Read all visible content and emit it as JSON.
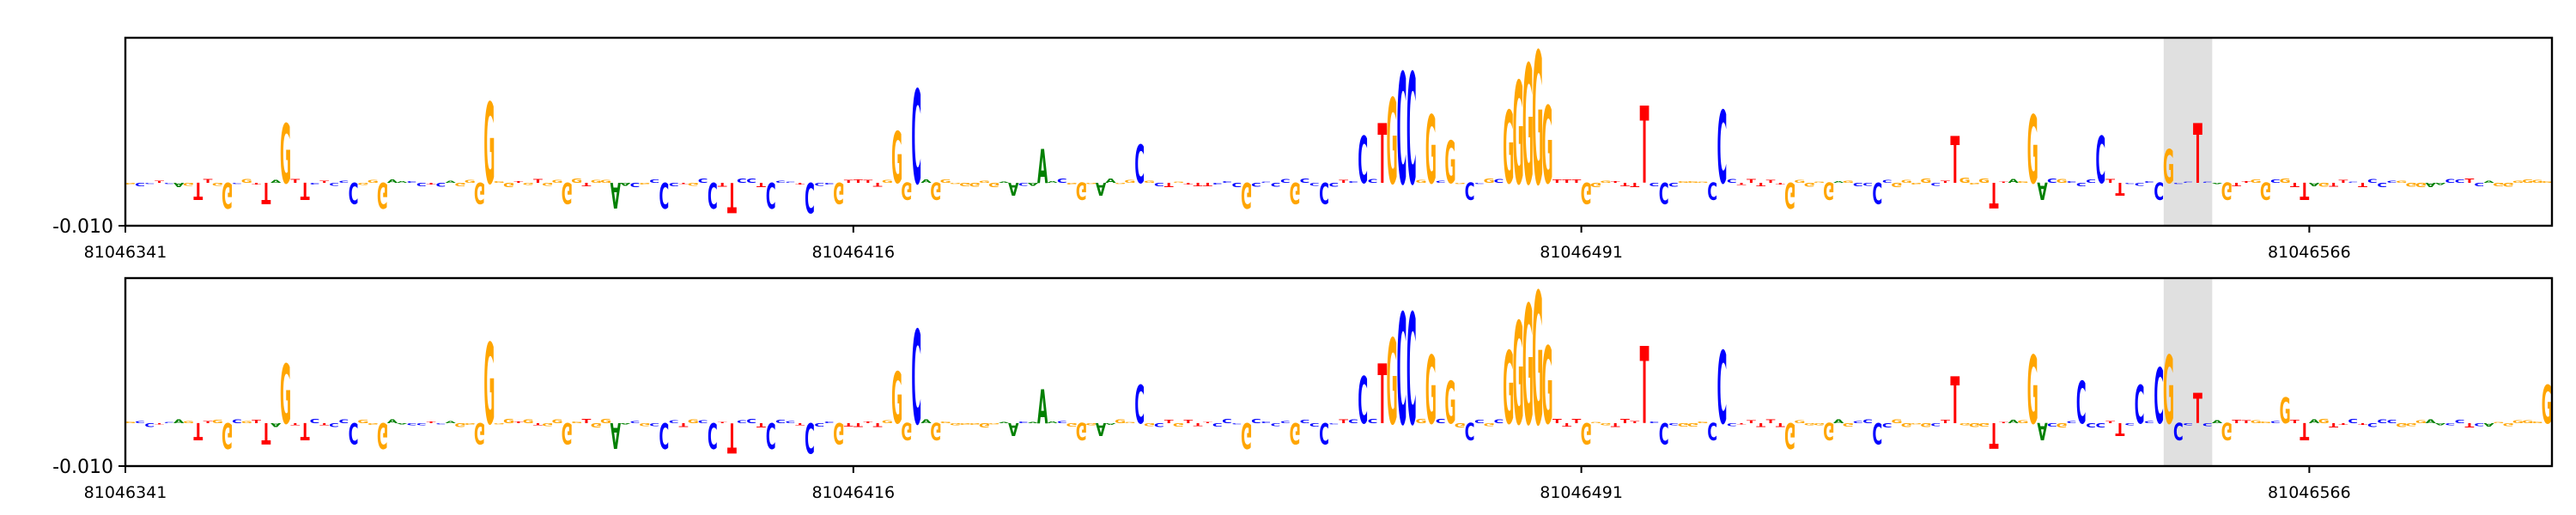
{
  "colors": {
    "A": "#008000",
    "C": "#0000ff",
    "G": "#ffa500",
    "T": "#ff0000",
    "highlight": "#e0e0e0",
    "frame": "#000000"
  },
  "chart_data": [
    {
      "type": "sequence-logo",
      "title": "",
      "xlabel": "",
      "ylabel": "",
      "ytick_label": "-0.010",
      "xlim": [
        81046341,
        81046591
      ],
      "xticks": [
        81046341,
        81046416,
        81046491,
        81046566
      ],
      "xtick_labels": [
        "81046341",
        "81046416",
        "81046491",
        "81046566"
      ],
      "ylim": [
        -0.01,
        0.034
      ],
      "highlight_range": [
        81046551,
        81046556
      ],
      "bases": "GCCTCAGTTGGCGTTAGTTCTCCCGGGAACCTCAGGGGGGTGTGGGGTGGAACGCCCTGCCTTCCTCCCTCCCGTTTTGGGCAGGGGGGGAACAAACGGGAAGGCGCTGTTTCCCGCCCCGCCCCTCCCTGCCGGCGGCCGCGGGGGTTTGGGTTTTCCCGGGCCCTTTTTGGGGGAGCCCCGGGGCTTGGGTTAGGACGCCCCTTCCCC",
      "peaks": [
        [
          16,
          0.014
        ],
        [
          37,
          0.019
        ],
        [
          79,
          0.012
        ],
        [
          81,
          0.022
        ],
        [
          94,
          0.008
        ],
        [
          104,
          0.009
        ],
        [
          127,
          0.011
        ],
        [
          129,
          0.014
        ],
        [
          130,
          0.02
        ],
        [
          131,
          0.026
        ],
        [
          132,
          0.026
        ],
        [
          134,
          0.016
        ],
        [
          136,
          0.01
        ],
        [
          142,
          0.017
        ],
        [
          143,
          0.024
        ],
        [
          144,
          0.028
        ],
        [
          145,
          0.031
        ],
        [
          146,
          0.018
        ],
        [
          156,
          0.018
        ],
        [
          164,
          0.017
        ],
        [
          188,
          0.011
        ],
        [
          196,
          0.016
        ],
        [
          203,
          0.011
        ],
        [
          210,
          0.008
        ],
        [
          213,
          0.014
        ]
      ],
      "dips": [
        [
          7,
          -0.004
        ],
        [
          10,
          -0.006
        ],
        [
          14,
          -0.005
        ],
        [
          18,
          -0.004
        ],
        [
          23,
          -0.005
        ],
        [
          26,
          -0.006
        ],
        [
          36,
          -0.005
        ],
        [
          45,
          -0.005
        ],
        [
          50,
          -0.006
        ],
        [
          55,
          -0.006
        ],
        [
          60,
          -0.006
        ],
        [
          62,
          -0.007
        ],
        [
          66,
          -0.006
        ],
        [
          70,
          -0.007
        ],
        [
          73,
          -0.005
        ],
        [
          80,
          -0.004
        ],
        [
          83,
          -0.004
        ],
        [
          91,
          -0.003
        ],
        [
          98,
          -0.004
        ],
        [
          100,
          -0.003
        ],
        [
          115,
          -0.006
        ],
        [
          120,
          -0.005
        ],
        [
          123,
          -0.005
        ],
        [
          138,
          -0.004
        ],
        [
          146,
          -0.003
        ],
        [
          150,
          -0.005
        ],
        [
          158,
          -0.005
        ],
        [
          163,
          -0.004
        ],
        [
          171,
          -0.006
        ],
        [
          175,
          -0.004
        ],
        [
          180,
          -0.005
        ],
        [
          192,
          -0.006
        ],
        [
          197,
          -0.004
        ],
        [
          205,
          -0.003
        ],
        [
          209,
          -0.004
        ],
        [
          216,
          -0.004
        ],
        [
          220,
          -0.004
        ],
        [
          224,
          -0.004
        ]
      ],
      "noise_seed": 7
    },
    {
      "type": "sequence-logo",
      "title": "",
      "xlabel": "",
      "ylabel": "",
      "ytick_label": "-0.010",
      "xlim": [
        81046341,
        81046591
      ],
      "xticks": [
        81046341,
        81046416,
        81046491,
        81046566
      ],
      "xtick_labels": [
        "81046341",
        "81046416",
        "81046491",
        "81046566"
      ],
      "ylim": [
        -0.01,
        0.034
      ],
      "highlight_range": [
        81046551,
        81046556
      ],
      "bases": "GCCTCAGTTGGCGTTAGTTCTCCCGGGAACCTCAGGGGGGTGTGGGGTGGAACGCCCTGCCTTCCTCCCTCCCGTTTTGGGCAGGGGGGGAACAAACGGGAAGGCGCTGTTTCCCGCCCCGCCCCTCCCTGCCGGCGGCCGCGGGGGTTTGGGTTTTCCCGGGCCCTTTTTGGGGGAGCCCCGGGGCTTGGGTTAGGACGCCCCTTCCCC",
      "peaks": [
        [
          16,
          0.014
        ],
        [
          37,
          0.019
        ],
        [
          79,
          0.012
        ],
        [
          81,
          0.022
        ],
        [
          94,
          0.008
        ],
        [
          104,
          0.009
        ],
        [
          127,
          0.011
        ],
        [
          129,
          0.014
        ],
        [
          130,
          0.02
        ],
        [
          131,
          0.026
        ],
        [
          132,
          0.026
        ],
        [
          134,
          0.016
        ],
        [
          136,
          0.01
        ],
        [
          142,
          0.017
        ],
        [
          143,
          0.024
        ],
        [
          144,
          0.028
        ],
        [
          145,
          0.031
        ],
        [
          146,
          0.018
        ],
        [
          156,
          0.018
        ],
        [
          164,
          0.017
        ],
        [
          188,
          0.011
        ],
        [
          196,
          0.016
        ],
        [
          201,
          0.01
        ],
        [
          207,
          0.009
        ],
        [
          209,
          0.013
        ],
        [
          210,
          0.016
        ],
        [
          213,
          0.007
        ],
        [
          222,
          0.006
        ],
        [
          249,
          0.009
        ]
      ],
      "dips": [
        [
          7,
          -0.004
        ],
        [
          10,
          -0.006
        ],
        [
          14,
          -0.005
        ],
        [
          18,
          -0.004
        ],
        [
          23,
          -0.005
        ],
        [
          26,
          -0.006
        ],
        [
          36,
          -0.005
        ],
        [
          45,
          -0.005
        ],
        [
          50,
          -0.006
        ],
        [
          55,
          -0.006
        ],
        [
          60,
          -0.006
        ],
        [
          62,
          -0.007
        ],
        [
          66,
          -0.006
        ],
        [
          70,
          -0.007
        ],
        [
          73,
          -0.005
        ],
        [
          80,
          -0.004
        ],
        [
          83,
          -0.004
        ],
        [
          91,
          -0.003
        ],
        [
          98,
          -0.004
        ],
        [
          100,
          -0.003
        ],
        [
          115,
          -0.006
        ],
        [
          120,
          -0.005
        ],
        [
          123,
          -0.005
        ],
        [
          138,
          -0.004
        ],
        [
          146,
          -0.003
        ],
        [
          150,
          -0.005
        ],
        [
          158,
          -0.005
        ],
        [
          163,
          -0.004
        ],
        [
          171,
          -0.006
        ],
        [
          175,
          -0.004
        ],
        [
          180,
          -0.005
        ],
        [
          192,
          -0.006
        ],
        [
          197,
          -0.004
        ],
        [
          205,
          -0.003
        ],
        [
          211,
          -0.004
        ],
        [
          216,
          -0.004
        ],
        [
          224,
          -0.004
        ]
      ],
      "noise_seed": 11
    }
  ]
}
